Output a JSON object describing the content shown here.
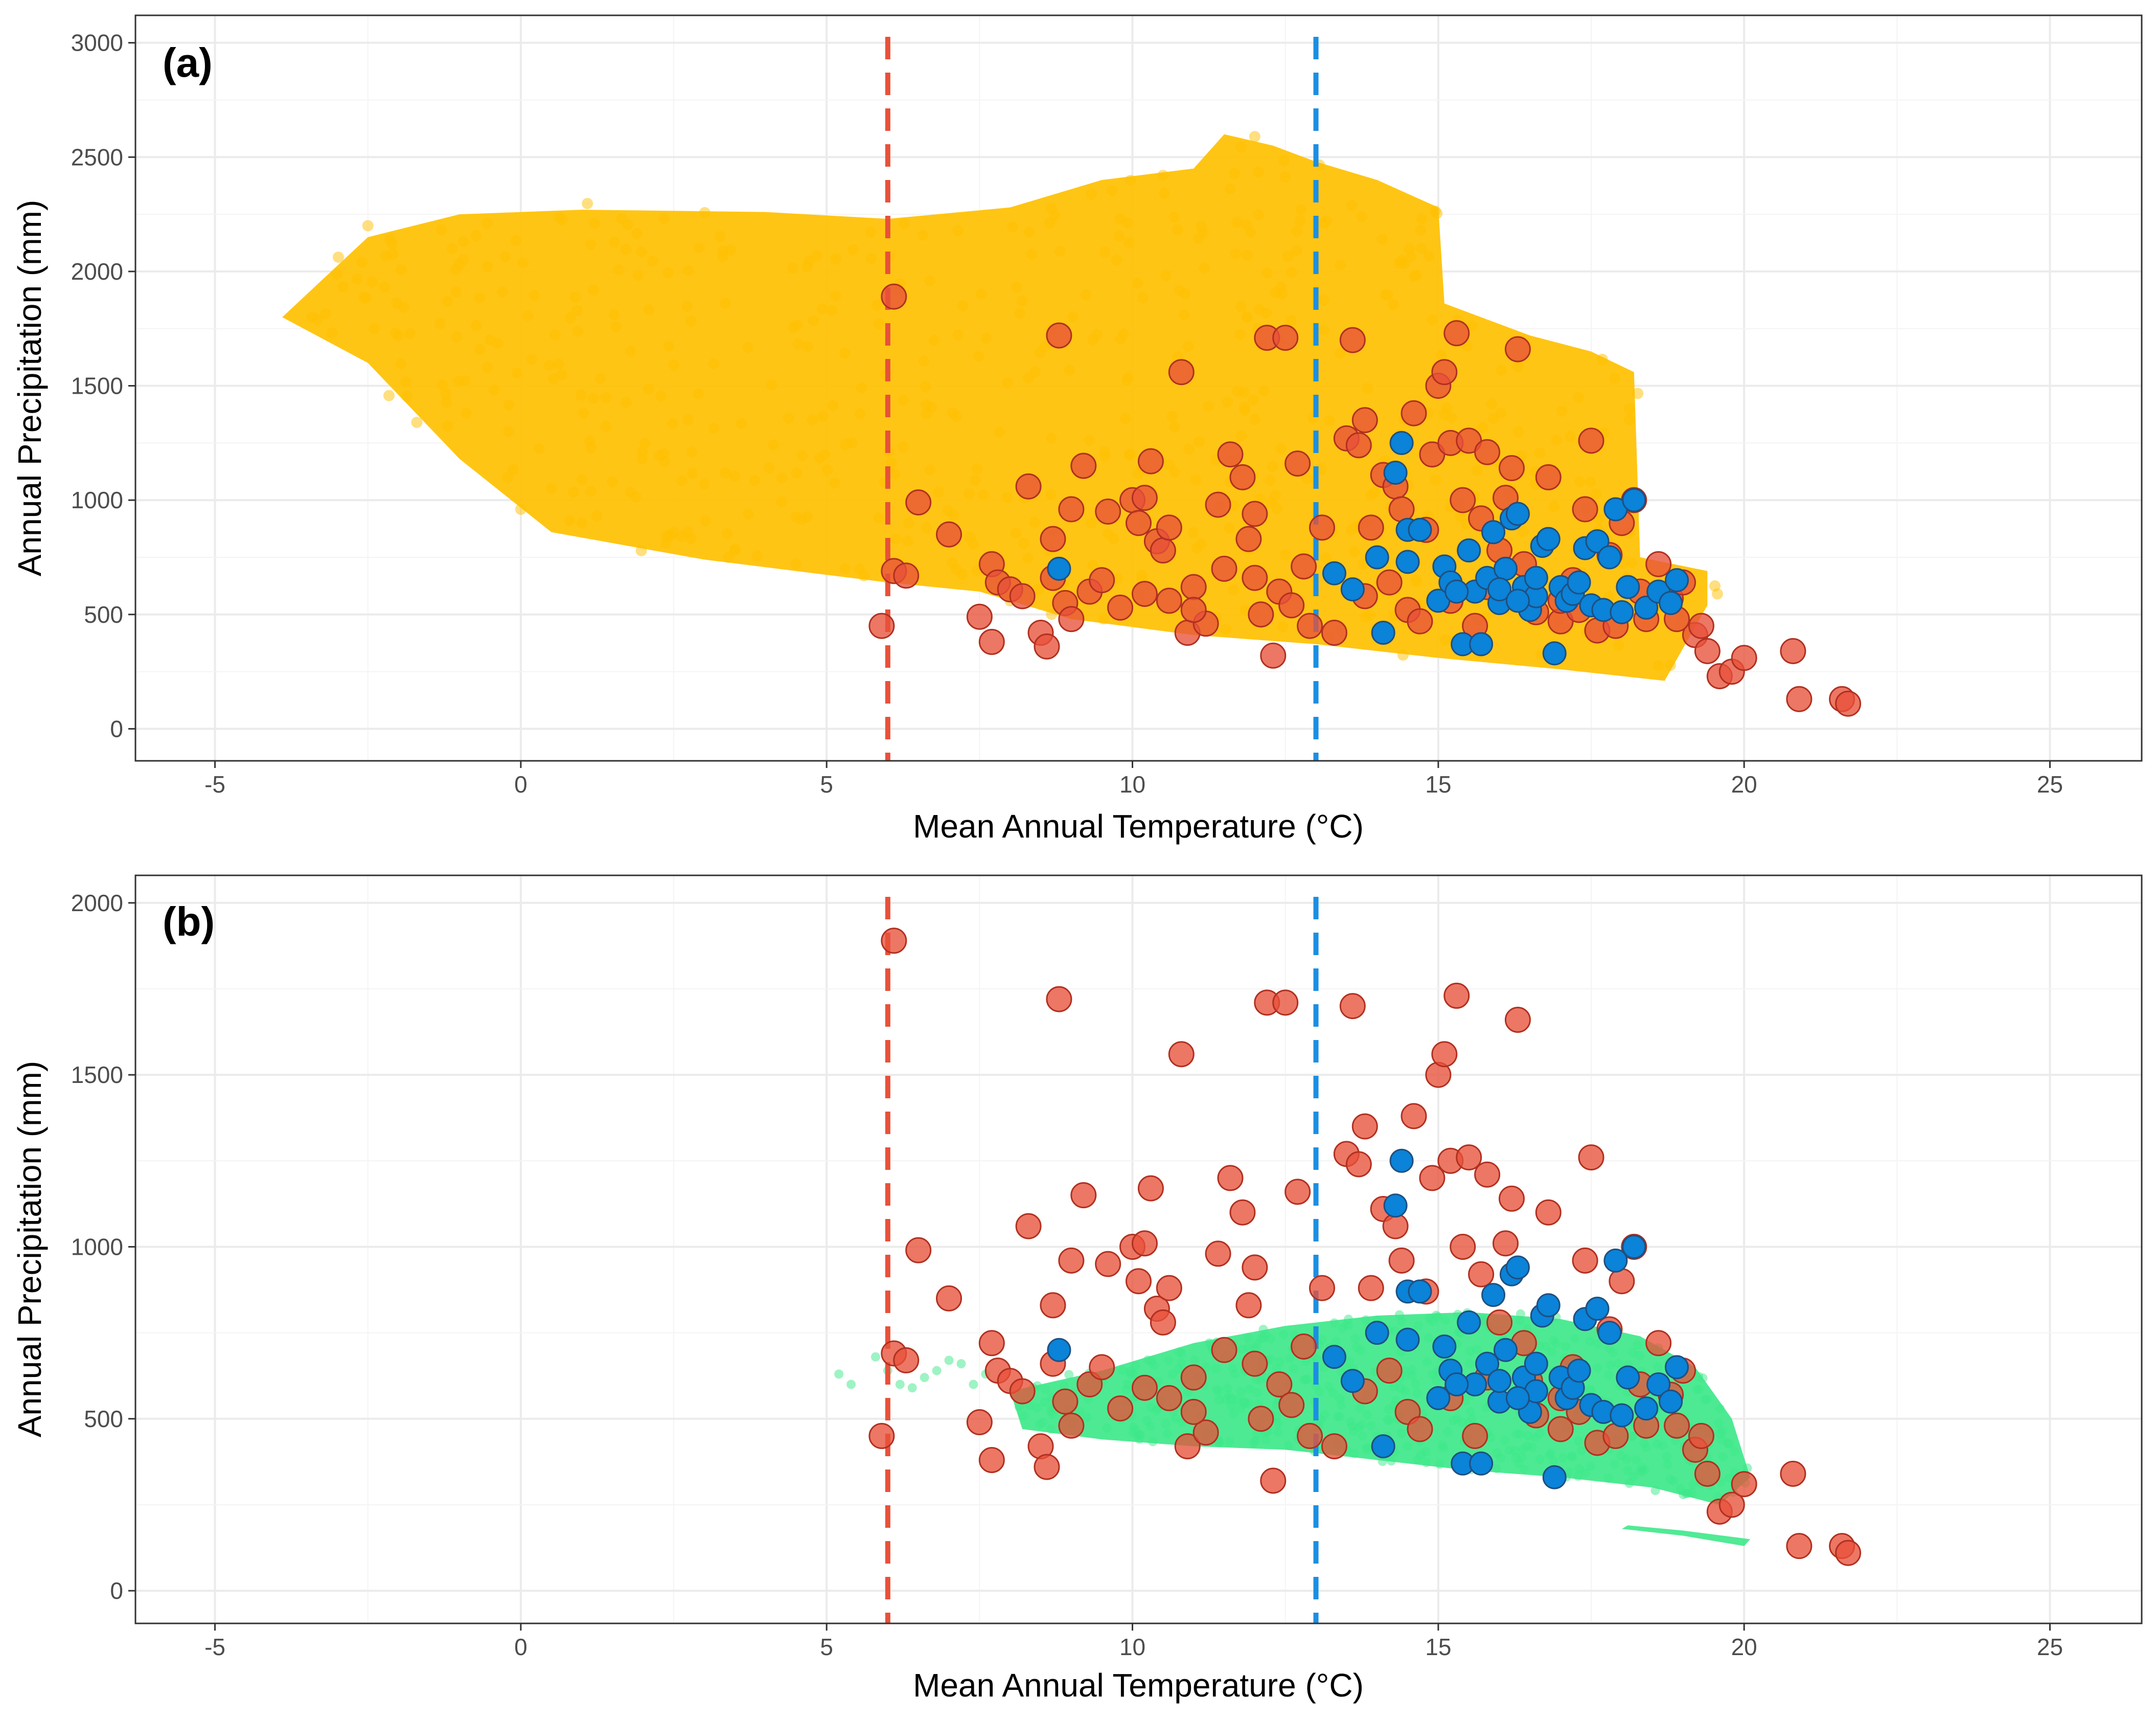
{
  "chart_data": [
    {
      "type": "scatter",
      "panel_label": "(a)",
      "xlabel": "Mean Annual Temperature (°C)",
      "ylabel": "Annual Precipitation (mm)",
      "xlim": [
        -6.3,
        26.5
      ],
      "ylim": [
        -140,
        3120
      ],
      "x_ticks": [
        -5,
        0,
        5,
        10,
        15,
        20,
        25
      ],
      "y_ticks": [
        0,
        500,
        1000,
        1500,
        2000,
        2500,
        3000
      ],
      "x_tick_labels": [
        "-5",
        "0",
        "5",
        "10",
        "15",
        "20",
        "25"
      ],
      "y_tick_labels": [
        "0",
        "500",
        "1000",
        "1500",
        "2000",
        "2500",
        "3000"
      ],
      "grid": true,
      "vlines": [
        {
          "x": 6,
          "color": "#E8513A",
          "style": "dashed"
        },
        {
          "x": 13,
          "color": "#1A8FE3",
          "style": "dashed"
        }
      ],
      "background_cloud": {
        "name": "climate-space",
        "color": "#FFC000",
        "opacity": 0.5,
        "envelope": [
          [
            -3.9,
            1800
          ],
          [
            -2.5,
            2150
          ],
          [
            -1,
            2250
          ],
          [
            1,
            2270
          ],
          [
            4,
            2260
          ],
          [
            6,
            2230
          ],
          [
            8,
            2280
          ],
          [
            9.5,
            2400
          ],
          [
            11,
            2450
          ],
          [
            11.5,
            2600
          ],
          [
            12.3,
            2550
          ],
          [
            13,
            2480
          ],
          [
            14,
            2400
          ],
          [
            15,
            2280
          ],
          [
            15.1,
            1860
          ],
          [
            16.5,
            1720
          ],
          [
            17.5,
            1650
          ],
          [
            18.2,
            1560
          ],
          [
            18.3,
            750
          ],
          [
            19.4,
            690
          ],
          [
            19.4,
            540
          ],
          [
            18.7,
            210
          ],
          [
            17,
            260
          ],
          [
            15,
            310
          ],
          [
            13,
            370
          ],
          [
            11,
            410
          ],
          [
            9,
            480
          ],
          [
            7.5,
            600
          ],
          [
            6,
            640
          ],
          [
            3,
            740
          ],
          [
            0.5,
            860
          ],
          [
            -1,
            1180
          ],
          [
            -2.5,
            1600
          ]
        ],
        "outliers": [
          [
            -2.5,
            2200
          ],
          [
            -2.6,
            2040
          ],
          [
            -2.0,
            1720
          ],
          [
            -1.7,
            1340
          ],
          [
            -1.2,
            1870
          ],
          [
            -0.5,
            1700
          ],
          [
            -0.2,
            1300
          ],
          [
            0,
            960
          ],
          [
            0.5,
            1050
          ],
          [
            1,
            900
          ],
          [
            1.5,
            1080
          ],
          [
            2.5,
            860
          ],
          [
            3,
            1070
          ],
          [
            3.5,
            780
          ],
          [
            4.5,
            720
          ],
          [
            5.3,
            700
          ],
          [
            6,
            660
          ],
          [
            8,
            560
          ],
          [
            10.5,
            2420
          ],
          [
            12,
            2590
          ]
        ]
      },
      "series": [
        {
          "name": "red-sites",
          "color": "#E8513A",
          "points": [
            [
              6.1,
              1890
            ],
            [
              5.9,
              450
            ],
            [
              6.1,
              690
            ],
            [
              6.3,
              670
            ],
            [
              6.5,
              990
            ],
            [
              7.0,
              850
            ],
            [
              7.5,
              490
            ],
            [
              7.7,
              380
            ],
            [
              7.7,
              720
            ],
            [
              7.8,
              640
            ],
            [
              8.0,
              610
            ],
            [
              8.2,
              580
            ],
            [
              8.3,
              1060
            ],
            [
              8.5,
              420
            ],
            [
              8.6,
              360
            ],
            [
              8.7,
              830
            ],
            [
              8.7,
              660
            ],
            [
              8.8,
              1720
            ],
            [
              8.9,
              550
            ],
            [
              9.0,
              960
            ],
            [
              9.2,
              1150
            ],
            [
              9.3,
              600
            ],
            [
              9.5,
              650
            ],
            [
              9.6,
              950
            ],
            [
              9.8,
              530
            ],
            [
              10.0,
              1000
            ],
            [
              10.1,
              900
            ],
            [
              10.2,
              1010
            ],
            [
              10.3,
              1170
            ],
            [
              10.4,
              820
            ],
            [
              10.5,
              780
            ],
            [
              10.6,
              880
            ],
            [
              10.6,
              560
            ],
            [
              10.8,
              1560
            ],
            [
              10.9,
              420
            ],
            [
              11.0,
              620
            ],
            [
              11.2,
              460
            ],
            [
              11.4,
              980
            ],
            [
              11.5,
              700
            ],
            [
              11.6,
              1200
            ],
            [
              11.8,
              1100
            ],
            [
              11.9,
              830
            ],
            [
              12.0,
              940
            ],
            [
              12.1,
              500
            ],
            [
              12.2,
              1710
            ],
            [
              12.3,
              320
            ],
            [
              12.4,
              600
            ],
            [
              12.5,
              1710
            ],
            [
              12.6,
              540
            ],
            [
              12.7,
              1160
            ],
            [
              12.8,
              710
            ],
            [
              12.9,
              450
            ],
            [
              13.1,
              880
            ],
            [
              13.3,
              420
            ],
            [
              13.5,
              1270
            ],
            [
              13.6,
              1700
            ],
            [
              13.7,
              1240
            ],
            [
              13.8,
              1350
            ],
            [
              13.9,
              880
            ],
            [
              14.1,
              1110
            ],
            [
              14.3,
              1060
            ],
            [
              14.4,
              960
            ],
            [
              14.6,
              1380
            ],
            [
              14.8,
              870
            ],
            [
              14.9,
              1200
            ],
            [
              15.0,
              1500
            ],
            [
              15.1,
              1560
            ],
            [
              15.2,
              1250
            ],
            [
              15.3,
              1730
            ],
            [
              15.4,
              1000
            ],
            [
              15.5,
              1260
            ],
            [
              15.7,
              920
            ],
            [
              15.8,
              1210
            ],
            [
              16.0,
              780
            ],
            [
              16.1,
              1010
            ],
            [
              16.2,
              1140
            ],
            [
              16.3,
              1660
            ],
            [
              16.4,
              720
            ],
            [
              16.6,
              510
            ],
            [
              16.8,
              1100
            ],
            [
              17.0,
              470
            ],
            [
              17.2,
              650
            ],
            [
              17.4,
              960
            ],
            [
              17.5,
              1260
            ],
            [
              17.6,
              430
            ],
            [
              17.8,
              760
            ],
            [
              18.0,
              900
            ],
            [
              18.2,
              1000
            ],
            [
              18.4,
              480
            ],
            [
              18.6,
              720
            ],
            [
              18.8,
              570
            ],
            [
              19.0,
              640
            ],
            [
              19.2,
              410
            ],
            [
              19.4,
              340
            ],
            [
              19.6,
              230
            ],
            [
              19.8,
              250
            ],
            [
              20.0,
              310
            ],
            [
              20.8,
              340
            ],
            [
              20.9,
              130
            ],
            [
              21.6,
              130
            ],
            [
              21.7,
              110
            ],
            [
              14.2,
              640
            ],
            [
              14.5,
              520
            ],
            [
              14.7,
              470
            ],
            [
              15.2,
              560
            ],
            [
              15.6,
              450
            ],
            [
              16.5,
              610
            ],
            [
              17.0,
              560
            ],
            [
              17.3,
              520
            ],
            [
              18.3,
              600
            ],
            [
              18.9,
              480
            ],
            [
              19.3,
              450
            ],
            [
              12.0,
              660
            ],
            [
              11.0,
              520
            ],
            [
              9.0,
              480
            ],
            [
              13.8,
              580
            ],
            [
              10.2,
              590
            ],
            [
              15.8,
              620
            ],
            [
              17.9,
              450
            ]
          ]
        },
        {
          "name": "blue-sites",
          "color": "#0A83D8",
          "points": [
            [
              8.8,
              700
            ],
            [
              13.3,
              680
            ],
            [
              13.6,
              610
            ],
            [
              14.0,
              750
            ],
            [
              14.1,
              420
            ],
            [
              14.3,
              1120
            ],
            [
              14.4,
              1250
            ],
            [
              14.5,
              870
            ],
            [
              14.5,
              730
            ],
            [
              14.7,
              870
            ],
            [
              15.0,
              560
            ],
            [
              15.1,
              710
            ],
            [
              15.2,
              640
            ],
            [
              15.4,
              370
            ],
            [
              15.5,
              780
            ],
            [
              15.6,
              600
            ],
            [
              15.7,
              370
            ],
            [
              15.8,
              660
            ],
            [
              15.9,
              860
            ],
            [
              16.0,
              550
            ],
            [
              16.1,
              700
            ],
            [
              16.2,
              920
            ],
            [
              16.3,
              940
            ],
            [
              16.4,
              620
            ],
            [
              16.5,
              520
            ],
            [
              16.6,
              580
            ],
            [
              16.7,
              800
            ],
            [
              16.8,
              830
            ],
            [
              16.9,
              330
            ],
            [
              17.0,
              620
            ],
            [
              17.1,
              560
            ],
            [
              17.2,
              590
            ],
            [
              17.4,
              790
            ],
            [
              17.5,
              540
            ],
            [
              17.6,
              820
            ],
            [
              17.7,
              520
            ],
            [
              17.8,
              750
            ],
            [
              17.9,
              960
            ],
            [
              18.0,
              510
            ],
            [
              18.1,
              620
            ],
            [
              18.2,
              1000
            ],
            [
              18.4,
              530
            ],
            [
              18.6,
              600
            ],
            [
              18.8,
              550
            ],
            [
              18.9,
              650
            ],
            [
              15.3,
              600
            ],
            [
              16.0,
              610
            ],
            [
              16.3,
              560
            ],
            [
              16.6,
              660
            ],
            [
              17.3,
              640
            ]
          ]
        }
      ]
    },
    {
      "type": "scatter",
      "panel_label": "(b)",
      "xlabel": "Mean Annual Temperature (°C)",
      "ylabel": "Annual Precipitation (mm)",
      "xlim": [
        -6.3,
        26.5
      ],
      "ylim": [
        -95,
        2080
      ],
      "x_ticks": [
        -5,
        0,
        5,
        10,
        15,
        20,
        25
      ],
      "y_ticks": [
        0,
        500,
        1000,
        1500,
        2000
      ],
      "x_tick_labels": [
        "-5",
        "0",
        "5",
        "10",
        "15",
        "20",
        "25"
      ],
      "y_tick_labels": [
        "0",
        "500",
        "1000",
        "1500",
        "2000"
      ],
      "grid": true,
      "vlines": [
        {
          "x": 6,
          "color": "#E8513A",
          "style": "dashed"
        },
        {
          "x": 13,
          "color": "#1A8FE3",
          "style": "dashed"
        }
      ],
      "background_cloud": {
        "name": "future-climate-space",
        "color": "#3EE88A",
        "opacity": 0.5,
        "envelope": [
          [
            8.0,
            580
          ],
          [
            9.5,
            640
          ],
          [
            11.0,
            720
          ],
          [
            12.5,
            770
          ],
          [
            14.0,
            800
          ],
          [
            15.5,
            810
          ],
          [
            17.0,
            790
          ],
          [
            18.3,
            740
          ],
          [
            19.2,
            650
          ],
          [
            19.8,
            500
          ],
          [
            20.1,
            330
          ],
          [
            19.6,
            250
          ],
          [
            18.5,
            300
          ],
          [
            17.0,
            330
          ],
          [
            15.5,
            350
          ],
          [
            14.0,
            380
          ],
          [
            12.5,
            410
          ],
          [
            11.0,
            420
          ],
          [
            9.5,
            440
          ],
          [
            8.2,
            470
          ]
        ],
        "band": [
          [
            18.0,
            180
          ],
          [
            19.0,
            160
          ],
          [
            20.0,
            130
          ],
          [
            20.1,
            150
          ],
          [
            19.0,
            175
          ],
          [
            18.1,
            190
          ]
        ],
        "outliers": [
          [
            5.2,
            630
          ],
          [
            5.4,
            600
          ],
          [
            5.8,
            680
          ],
          [
            6.0,
            640
          ],
          [
            6.2,
            600
          ],
          [
            6.4,
            590
          ],
          [
            6.6,
            620
          ],
          [
            6.8,
            640
          ],
          [
            7.0,
            670
          ],
          [
            7.2,
            660
          ],
          [
            7.4,
            600
          ],
          [
            7.6,
            630
          ]
        ]
      },
      "series_ref": [
        "red-sites",
        "blue-sites"
      ]
    }
  ]
}
